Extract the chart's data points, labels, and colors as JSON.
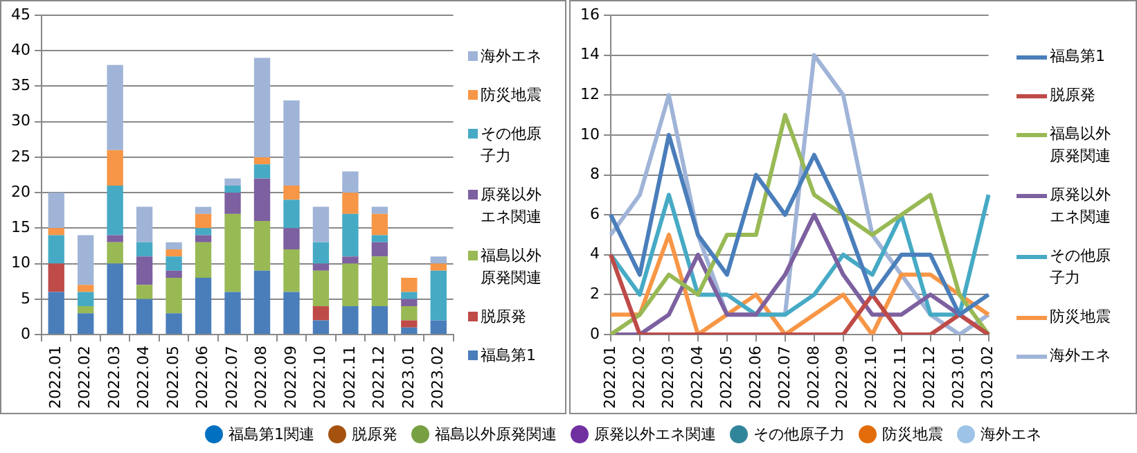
{
  "chart_data": [
    {
      "type": "bar",
      "stacked": true,
      "categories": [
        "2022.01",
        "2022.02",
        "2022.03",
        "2022.04",
        "2022.05",
        "2022.06",
        "2022.07",
        "2022.08",
        "2022.09",
        "2022.10",
        "2022.11",
        "2022.12",
        "2023.01",
        "2023.02"
      ],
      "ylim": [
        0,
        45
      ],
      "yticks": [
        0,
        5,
        10,
        15,
        20,
        25,
        30,
        35,
        40,
        45
      ],
      "grid": "y",
      "legend": "right",
      "series": [
        {
          "name": "福島第1",
          "color": "#4a7ebb",
          "values": [
            6,
            3,
            10,
            5,
            3,
            8,
            6,
            9,
            6,
            2,
            4,
            4,
            1,
            2
          ]
        },
        {
          "name": "脱原発",
          "color": "#be4b48",
          "values": [
            4,
            0,
            0,
            0,
            0,
            0,
            0,
            0,
            0,
            2,
            0,
            0,
            1,
            0
          ]
        },
        {
          "name": "福島以外原発関連",
          "color": "#98b954",
          "values": [
            0,
            1,
            3,
            2,
            5,
            5,
            11,
            7,
            6,
            5,
            6,
            7,
            2,
            0
          ]
        },
        {
          "name": "原発以外エネ関連",
          "color": "#7d60a0",
          "values": [
            0,
            0,
            1,
            4,
            1,
            1,
            3,
            6,
            3,
            1,
            1,
            2,
            1,
            0
          ]
        },
        {
          "name": "その他原子力",
          "color": "#46aac5",
          "values": [
            4,
            2,
            7,
            2,
            2,
            1,
            1,
            2,
            4,
            3,
            6,
            1,
            1,
            7
          ]
        },
        {
          "name": "防災地震",
          "color": "#f79646",
          "values": [
            1,
            1,
            5,
            0,
            1,
            2,
            0,
            1,
            2,
            0,
            3,
            3,
            2,
            1
          ]
        },
        {
          "name": "海外エネ",
          "color": "#a0b4d8",
          "values": [
            5,
            7,
            12,
            5,
            1,
            1,
            1,
            14,
            12,
            5,
            3,
            1,
            0,
            1
          ]
        }
      ]
    },
    {
      "type": "line",
      "categories": [
        "2022.01",
        "2022.02",
        "2022.03",
        "2022.04",
        "2022.05",
        "2022.06",
        "2022.07",
        "2022.08",
        "2022.09",
        "2022.10",
        "2022.11",
        "2022.12",
        "2023.01",
        "2023.02"
      ],
      "ylim": [
        0,
        16
      ],
      "yticks": [
        0,
        2,
        4,
        6,
        8,
        10,
        12,
        14,
        16
      ],
      "grid": "y",
      "legend": "right",
      "marker": "none",
      "series": [
        {
          "name": "福島第1",
          "color": "#4a7ebb",
          "values": [
            6,
            3,
            10,
            5,
            3,
            8,
            6,
            9,
            6,
            2,
            4,
            4,
            1,
            2
          ]
        },
        {
          "name": "脱原発",
          "color": "#be4b48",
          "values": [
            4,
            0,
            0,
            0,
            0,
            0,
            0,
            0,
            0,
            2,
            0,
            0,
            1,
            0
          ]
        },
        {
          "name": "福島以外原発関連",
          "color": "#98b954",
          "values": [
            0,
            1,
            3,
            2,
            5,
            5,
            11,
            7,
            6,
            5,
            6,
            7,
            2,
            0
          ]
        },
        {
          "name": "原発以外エネ関連",
          "color": "#7d60a0",
          "values": [
            0,
            0,
            1,
            4,
            1,
            1,
            3,
            6,
            3,
            1,
            1,
            2,
            1,
            0
          ]
        },
        {
          "name": "その他原子力",
          "color": "#46aac5",
          "values": [
            4,
            2,
            7,
            2,
            2,
            1,
            1,
            2,
            4,
            3,
            6,
            1,
            1,
            7
          ]
        },
        {
          "name": "防災地震",
          "color": "#f79646",
          "values": [
            1,
            1,
            5,
            0,
            1,
            2,
            0,
            1,
            2,
            0,
            3,
            3,
            2,
            1
          ]
        },
        {
          "name": "海外エネ",
          "color": "#a0b4d8",
          "values": [
            5,
            7,
            12,
            5,
            1,
            1,
            1,
            14,
            12,
            5,
            3,
            1,
            0,
            1
          ]
        }
      ]
    },
    {
      "type": "other",
      "annotations": [
        "福島第1関連",
        "脱原発",
        "福島以外原発関連",
        "原発以外エネ関連",
        "その他原子力",
        "防災地震",
        "海外エネ"
      ],
      "colors": [
        "#0070c0",
        "#a5520f",
        "#77a043",
        "#7030a0",
        "#31859b",
        "#e36c0a",
        "#9dc3e6"
      ]
    }
  ]
}
